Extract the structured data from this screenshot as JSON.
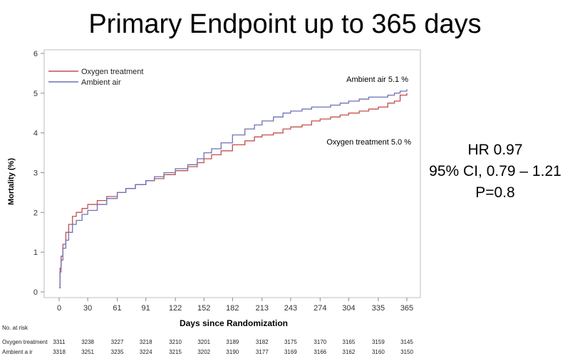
{
  "title": "Primary Endpoint up to 365 days",
  "stats": {
    "hr": "HR 0.97",
    "ci": "95% CI, 0.79 – 1.21",
    "p": "P=0.8"
  },
  "annotations": {
    "ambient": "Ambient air 5.1 %",
    "oxygen": "Oxygen treatment 5.0 %"
  },
  "chart_data": {
    "type": "line",
    "xlabel": "Days since Randomization",
    "ylabel": "Mortality (%)",
    "xlim": [
      0,
      365
    ],
    "ylim": [
      0,
      6
    ],
    "x_ticks": [
      0,
      30,
      61,
      91,
      122,
      152,
      182,
      213,
      243,
      274,
      304,
      335,
      365
    ],
    "y_ticks": [
      0,
      1,
      2,
      3,
      4,
      5,
      6
    ],
    "legend_position": "top-left",
    "series": [
      {
        "name": "Oxygen treatment",
        "color": "#c0504d",
        "points": [
          [
            0,
            0.1
          ],
          [
            1,
            0.6
          ],
          [
            2,
            0.9
          ],
          [
            4,
            1.2
          ],
          [
            7,
            1.5
          ],
          [
            10,
            1.7
          ],
          [
            14,
            1.9
          ],
          [
            18,
            2.0
          ],
          [
            24,
            2.1
          ],
          [
            30,
            2.2
          ],
          [
            40,
            2.3
          ],
          [
            50,
            2.4
          ],
          [
            61,
            2.5
          ],
          [
            70,
            2.6
          ],
          [
            80,
            2.7
          ],
          [
            91,
            2.8
          ],
          [
            100,
            2.85
          ],
          [
            110,
            2.95
          ],
          [
            122,
            3.05
          ],
          [
            135,
            3.15
          ],
          [
            145,
            3.25
          ],
          [
            152,
            3.35
          ],
          [
            160,
            3.45
          ],
          [
            170,
            3.55
          ],
          [
            182,
            3.7
          ],
          [
            195,
            3.8
          ],
          [
            205,
            3.9
          ],
          [
            213,
            3.95
          ],
          [
            225,
            4.0
          ],
          [
            235,
            4.1
          ],
          [
            243,
            4.15
          ],
          [
            255,
            4.2
          ],
          [
            265,
            4.3
          ],
          [
            274,
            4.35
          ],
          [
            285,
            4.4
          ],
          [
            295,
            4.45
          ],
          [
            304,
            4.5
          ],
          [
            315,
            4.55
          ],
          [
            325,
            4.6
          ],
          [
            335,
            4.65
          ],
          [
            345,
            4.75
          ],
          [
            352,
            4.8
          ],
          [
            358,
            4.95
          ],
          [
            365,
            5.0
          ]
        ]
      },
      {
        "name": "Ambient air",
        "color": "#6f72b5",
        "points": [
          [
            0,
            0.1
          ],
          [
            1,
            0.5
          ],
          [
            2,
            0.8
          ],
          [
            4,
            1.1
          ],
          [
            7,
            1.3
          ],
          [
            10,
            1.5
          ],
          [
            14,
            1.7
          ],
          [
            18,
            1.8
          ],
          [
            24,
            1.95
          ],
          [
            30,
            2.05
          ],
          [
            40,
            2.2
          ],
          [
            50,
            2.35
          ],
          [
            61,
            2.5
          ],
          [
            70,
            2.6
          ],
          [
            80,
            2.7
          ],
          [
            91,
            2.8
          ],
          [
            100,
            2.9
          ],
          [
            110,
            3.0
          ],
          [
            122,
            3.1
          ],
          [
            135,
            3.2
          ],
          [
            145,
            3.35
          ],
          [
            152,
            3.5
          ],
          [
            160,
            3.6
          ],
          [
            170,
            3.75
          ],
          [
            182,
            3.95
          ],
          [
            195,
            4.1
          ],
          [
            205,
            4.2
          ],
          [
            213,
            4.3
          ],
          [
            225,
            4.4
          ],
          [
            235,
            4.5
          ],
          [
            243,
            4.55
          ],
          [
            255,
            4.6
          ],
          [
            265,
            4.65
          ],
          [
            274,
            4.65
          ],
          [
            285,
            4.7
          ],
          [
            295,
            4.75
          ],
          [
            304,
            4.8
          ],
          [
            315,
            4.85
          ],
          [
            325,
            4.9
          ],
          [
            335,
            4.9
          ],
          [
            345,
            4.95
          ],
          [
            352,
            5.0
          ],
          [
            358,
            5.05
          ],
          [
            365,
            5.1
          ]
        ]
      }
    ]
  },
  "risk_table": {
    "header": "No. at risk",
    "rows": [
      {
        "label": "Oxygen  treatment",
        "values": [
          "3311",
          "3238",
          "3227",
          "3218",
          "3210",
          "3201",
          "3189",
          "3182",
          "3175",
          "3170",
          "3165",
          "3159",
          "3145"
        ]
      },
      {
        "label": "Ambient a ir",
        "values": [
          "3318",
          "3251",
          "3235",
          "3224",
          "3215",
          "3202",
          "3190",
          "3177",
          "3169",
          "3166",
          "3162",
          "3160",
          "3150"
        ]
      }
    ]
  }
}
